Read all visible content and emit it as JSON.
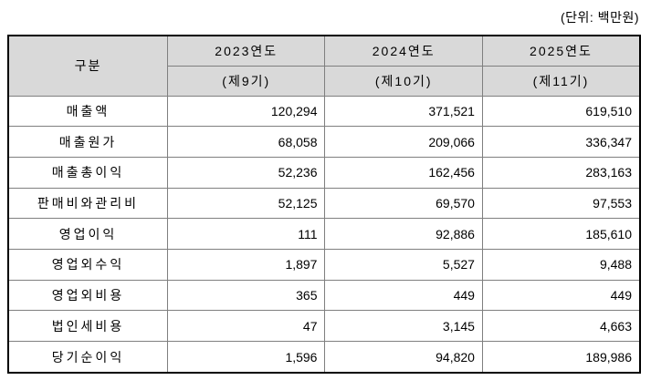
{
  "unit_label": "(단위: 백만원)",
  "table": {
    "corner_header": "구분",
    "year_columns": [
      {
        "year": "2023연도",
        "period": "(제9기)"
      },
      {
        "year": "2024연도",
        "period": "(제10기)"
      },
      {
        "year": "2025연도",
        "period": "(제11기)"
      }
    ],
    "rows": [
      {
        "label": "매출액",
        "values": [
          "120,294",
          "371,521",
          "619,510"
        ]
      },
      {
        "label": "매출원가",
        "values": [
          "68,058",
          "209,066",
          "336,347"
        ]
      },
      {
        "label": "매출총이익",
        "values": [
          "52,236",
          "162,456",
          "283,163"
        ]
      },
      {
        "label": "판매비와관리비",
        "values": [
          "52,125",
          "69,570",
          "97,553"
        ]
      },
      {
        "label": "영업이익",
        "values": [
          "111",
          "92,886",
          "185,610"
        ]
      },
      {
        "label": "영업외수익",
        "values": [
          "1,897",
          "5,527",
          "9,488"
        ]
      },
      {
        "label": "영업외비용",
        "values": [
          "365",
          "449",
          "449"
        ]
      },
      {
        "label": "법인세비용",
        "values": [
          "47",
          "3,145",
          "4,663"
        ]
      },
      {
        "label": "당기순이익",
        "values": [
          "1,596",
          "94,820",
          "189,986"
        ]
      }
    ]
  },
  "colors": {
    "header_background": "#d9d9d9",
    "inner_border": "#7f7f7f",
    "outer_border": "#000000",
    "text": "#000000",
    "page_background": "#ffffff"
  }
}
